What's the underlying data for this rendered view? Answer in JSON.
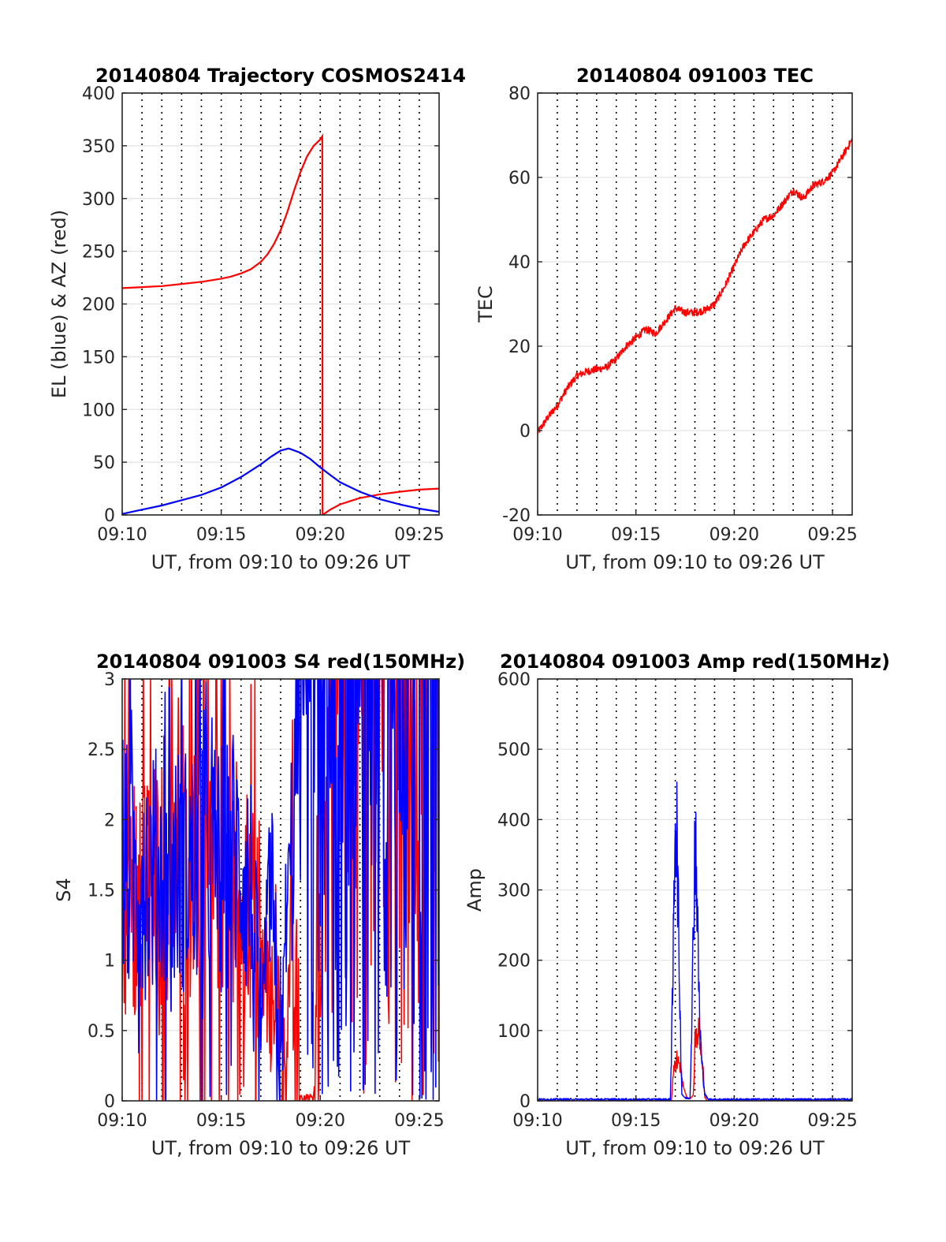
{
  "chart_data": [
    {
      "type": "line",
      "title": "20140804 Trajectory COSMOS2414",
      "xlabel": "UT, from 09:10 to 09:26 UT",
      "ylabel": "EL (blue) & AZ (red)",
      "xlim": [
        "09:10",
        "09:26"
      ],
      "ylim": [
        0,
        400
      ],
      "xticks": [
        "09:10",
        "09:15",
        "09:20",
        "09:25"
      ],
      "yticks": [
        "0",
        "50",
        "100",
        "150",
        "200",
        "250",
        "300",
        "350",
        "400"
      ],
      "grid": "vertical dotted minute lines, horizontal solid light lines",
      "series": [
        {
          "color": "#ff0000",
          "x": [
            "09:10:00",
            "09:11:00",
            "09:12:00",
            "09:13:00",
            "09:14:00",
            "09:15:00",
            "09:15:30",
            "09:16:00",
            "09:16:30",
            "09:17:00",
            "09:17:20",
            "09:17:40",
            "09:18:00",
            "09:18:20",
            "09:18:40",
            "09:19:00",
            "09:19:20",
            "09:19:40",
            "09:20:00",
            "09:20:06",
            "09:20:07",
            "09:20:30",
            "09:21:00",
            "09:21:30",
            "09:22:00",
            "09:23:00",
            "09:24:00",
            "09:25:00",
            "09:26:00"
          ],
          "values": [
            215,
            216,
            217,
            219,
            221,
            224,
            226,
            229,
            233,
            240,
            247,
            257,
            270,
            287,
            307,
            325,
            340,
            350,
            356,
            359,
            0,
            5,
            10,
            13,
            16,
            19.5,
            22,
            24,
            25
          ]
        },
        {
          "color": "#0000ff",
          "x": [
            "09:10:00",
            "09:11:00",
            "09:12:00",
            "09:13:00",
            "09:14:00",
            "09:15:00",
            "09:16:00",
            "09:17:00",
            "09:17:30",
            "09:18:00",
            "09:18:24",
            "09:19:00",
            "09:19:30",
            "09:20:00",
            "09:20:30",
            "09:21:00",
            "09:22:00",
            "09:23:00",
            "09:24:00",
            "09:25:00",
            "09:26:00"
          ],
          "values": [
            1,
            5,
            9,
            14,
            19,
            26,
            36,
            48,
            55,
            61,
            63,
            59,
            53,
            45,
            38,
            31,
            22,
            15,
            10,
            6,
            3
          ]
        }
      ]
    },
    {
      "type": "line",
      "title": "20140804 091003 TEC",
      "xlabel": "UT, from 09:10 to 09:26 UT",
      "ylabel": "TEC",
      "xlim": [
        "09:10",
        "09:26"
      ],
      "ylim": [
        -20,
        80
      ],
      "xticks": [
        "09:10",
        "09:15",
        "09:20",
        "09:25"
      ],
      "yticks": [
        "-20",
        "0",
        "20",
        "40",
        "60",
        "80"
      ],
      "grid": "vertical dotted minute lines, horizontal solid light lines",
      "series": [
        {
          "color": "#ff0000",
          "x": [
            "09:10:00",
            "09:10:30",
            "09:11:00",
            "09:11:30",
            "09:12:00",
            "09:12:30",
            "09:13:00",
            "09:13:30",
            "09:14:00",
            "09:14:30",
            "09:15:00",
            "09:15:30",
            "09:16:00",
            "09:16:30",
            "09:17:00",
            "09:17:30",
            "09:18:00",
            "09:18:30",
            "09:19:00",
            "09:19:30",
            "09:20:00",
            "09:20:30",
            "09:21:00",
            "09:21:30",
            "09:22:00",
            "09:22:30",
            "09:23:00",
            "09:23:30",
            "09:24:00",
            "09:24:30",
            "09:25:00",
            "09:25:30",
            "09:26:00"
          ],
          "values": [
            -0.5,
            3,
            6,
            10,
            13,
            14,
            14.5,
            15,
            17,
            20,
            22,
            24,
            23,
            26,
            29,
            28,
            28,
            28.5,
            30,
            34,
            39,
            44,
            47,
            50,
            51,
            54,
            57,
            55,
            58,
            59,
            61,
            65,
            69
          ]
        }
      ]
    },
    {
      "type": "line",
      "title": "20140804 091003 S4 red(150MHz)",
      "xlabel": "UT, from 09:10 to 09:26 UT",
      "ylabel": "S4",
      "xlim": [
        "09:10",
        "09:26"
      ],
      "ylim": [
        0,
        3
      ],
      "xticks": [
        "09:10",
        "09:15",
        "09:20",
        "09:25"
      ],
      "yticks": [
        "0",
        "0.5",
        "1",
        "1.5",
        "2",
        "2.5",
        "3"
      ],
      "grid": "vertical dotted minute lines, horizontal solid light lines",
      "series": [
        {
          "color": "#ff0000",
          "x": [
            "09:10:00",
            "09:16:00",
            "09:16:30",
            "09:16:45",
            "09:17:00",
            "09:17:15",
            "09:17:30",
            "09:17:45",
            "09:18:00",
            "09:18:15",
            "09:18:30",
            "09:19:00",
            "09:19:40",
            "09:20:30",
            "09:21:30",
            "09:22:30",
            "09:23:30",
            "09:24:30",
            "09:25:30",
            "09:26:00"
          ],
          "values": [
            1.5,
            1.6,
            1.4,
            1.2,
            0.8,
            1.0,
            0.6,
            0.9,
            0.05,
            0.3,
            1.1,
            0.0,
            0.0,
            3.0,
            3.0,
            3.0,
            3.0,
            3.0,
            3.0,
            3.0
          ]
        },
        {
          "color": "#0000ff",
          "x": [
            "09:10:00",
            "09:16:00",
            "09:16:30",
            "09:17:00",
            "09:17:15",
            "09:17:30",
            "09:17:45",
            "09:18:00",
            "09:18:15",
            "09:18:30",
            "09:19:00",
            "09:19:40",
            "09:20:30",
            "09:21:30",
            "09:22:30",
            "09:23:30",
            "09:24:30",
            "09:25:30",
            "09:26:00"
          ],
          "values": [
            1.6,
            1.7,
            1.5,
            0.1,
            1.2,
            1.4,
            0.8,
            0.1,
            1.3,
            1.6,
            3.0,
            3.0,
            3.0,
            3.0,
            3.0,
            3.0,
            3.0,
            3.0,
            3.0
          ]
        }
      ]
    },
    {
      "type": "line",
      "title": "20140804 091003 Amp red(150MHz)",
      "xlabel": "UT, from 09:10 to 09:26 UT",
      "ylabel": "Amp",
      "xlim": [
        "09:10",
        "09:26"
      ],
      "ylim": [
        0,
        600
      ],
      "xticks": [
        "09:10",
        "09:15",
        "09:20",
        "09:25"
      ],
      "yticks": [
        "0",
        "100",
        "200",
        "300",
        "400",
        "500",
        "600"
      ],
      "grid": "vertical dotted minute lines, horizontal solid light lines",
      "series": [
        {
          "color": "#ff0000",
          "x": [
            "09:10:00",
            "09:16:48",
            "09:16:55",
            "09:17:05",
            "09:17:15",
            "09:17:25",
            "09:17:35",
            "09:17:45",
            "09:17:55",
            "09:18:00",
            "09:18:08",
            "09:18:15",
            "09:18:22",
            "09:18:30",
            "09:18:38",
            "09:26:00"
          ],
          "values": [
            0,
            0,
            40,
            60,
            50,
            20,
            5,
            3,
            8,
            80,
            100,
            90,
            60,
            5,
            0,
            0
          ]
        },
        {
          "color": "#0000ff",
          "x": [
            "09:10:00",
            "09:16:45",
            "09:16:52",
            "09:17:00",
            "09:17:05",
            "09:17:10",
            "09:17:15",
            "09:17:20",
            "09:17:30",
            "09:17:45",
            "09:17:52",
            "09:18:00",
            "09:18:05",
            "09:18:10",
            "09:18:15",
            "09:18:20",
            "09:18:30",
            "09:18:40",
            "09:26:00"
          ],
          "values": [
            2,
            2,
            150,
            420,
            380,
            250,
            120,
            10,
            4,
            4,
            150,
            390,
            330,
            200,
            110,
            60,
            10,
            2,
            2
          ]
        }
      ]
    }
  ]
}
